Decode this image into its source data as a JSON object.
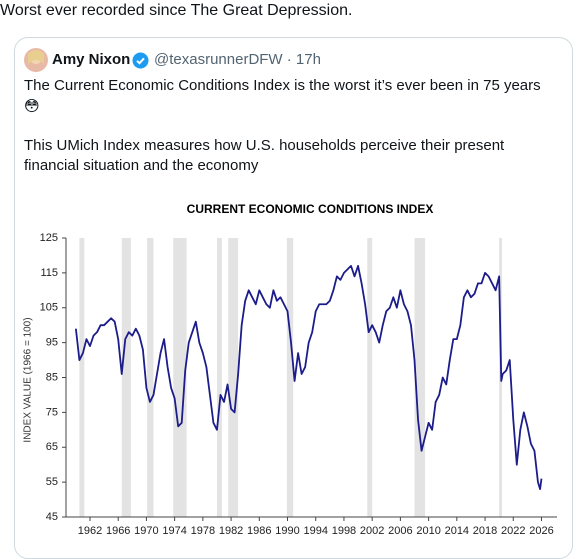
{
  "post": {
    "text": "Worst ever recorded since The Great Depression."
  },
  "quoted": {
    "name": "Amy Nixon",
    "handle": "@texasrunnerDFW · 17h",
    "lines": [
      "The Current Economic Conditions Index is the worst it’s ever been in 75 years",
      "😳",
      "This UMich Index measures how U.S. households perceive their present",
      "financial situation and the economy"
    ]
  },
  "chart_data": {
    "type": "line",
    "title": "CURRENT ECONOMIC CONDITIONS INDEX",
    "y_label": "INDEX VALUE (1966 = 100)",
    "xlim": [
      1958.6,
      2028.2
    ],
    "xticks": [
      1962,
      1966,
      1970,
      1974,
      1978,
      1982,
      1986,
      1990,
      1994,
      1998,
      2002,
      2006,
      2010,
      2014,
      2018,
      2022,
      2026
    ],
    "ylim": [
      45,
      125
    ],
    "yticks": [
      45,
      55,
      65,
      75,
      85,
      95,
      105,
      115,
      125
    ],
    "shaded_periods": [
      [
        1960.5,
        1961.2
      ],
      [
        1966.5,
        1967.8
      ],
      [
        1970.1,
        1971.0
      ],
      [
        1973.8,
        1975.7
      ],
      [
        1980.0,
        1980.7
      ],
      [
        1981.6,
        1983.0
      ],
      [
        1989.9,
        1990.8
      ],
      [
        2001.3,
        2002.0
      ],
      [
        2008.0,
        2009.5
      ],
      [
        2020.0,
        2020.4
      ]
    ],
    "shade_color": "#e3e3e3",
    "x": [
      1960.0,
      1960.5,
      1961.0,
      1961.5,
      1962.0,
      1962.5,
      1963.0,
      1963.5,
      1964.0,
      1964.5,
      1965.0,
      1965.5,
      1966.0,
      1966.5,
      1967.0,
      1967.5,
      1968.0,
      1968.5,
      1969.0,
      1969.5,
      1970.0,
      1970.5,
      1971.0,
      1971.5,
      1972.0,
      1972.5,
      1973.0,
      1973.5,
      1974.0,
      1974.5,
      1975.0,
      1975.5,
      1976.0,
      1976.5,
      1977.0,
      1977.5,
      1978.0,
      1978.5,
      1979.0,
      1979.5,
      1980.0,
      1980.5,
      1981.0,
      1981.5,
      1982.0,
      1982.5,
      1983.0,
      1983.5,
      1984.0,
      1984.5,
      1985.0,
      1985.5,
      1986.0,
      1986.5,
      1987.0,
      1987.5,
      1988.0,
      1988.5,
      1989.0,
      1989.5,
      1990.0,
      1990.5,
      1991.0,
      1991.5,
      1992.0,
      1992.5,
      1993.0,
      1993.5,
      1994.0,
      1994.5,
      1995.0,
      1995.5,
      1996.0,
      1996.5,
      1997.0,
      1997.5,
      1998.0,
      1998.5,
      1999.0,
      1999.5,
      2000.0,
      2000.5,
      2001.0,
      2001.5,
      2002.0,
      2002.5,
      2003.0,
      2003.5,
      2004.0,
      2004.5,
      2005.0,
      2005.5,
      2006.0,
      2006.5,
      2007.0,
      2007.5,
      2008.0,
      2008.5,
      2009.0,
      2009.5,
      2010.0,
      2010.5,
      2011.0,
      2011.5,
      2012.0,
      2012.5,
      2013.0,
      2013.5,
      2014.0,
      2014.5,
      2015.0,
      2015.5,
      2016.0,
      2016.5,
      2017.0,
      2017.5,
      2018.0,
      2018.5,
      2019.0,
      2019.5,
      2020.0,
      2020.3,
      2020.5,
      2021.0,
      2021.5,
      2022.0,
      2022.5,
      2023.0,
      2023.5,
      2024.0,
      2024.5,
      2025.0,
      2025.5,
      2025.8,
      2026.0
    ],
    "series": [
      {
        "name": "Current Economic Conditions Index",
        "color": "#1c1c8a",
        "values": [
          99,
          90,
          92,
          96,
          94,
          97,
          98,
          100,
          100,
          101,
          102,
          101,
          96,
          86,
          96,
          98,
          97,
          99,
          97,
          93,
          82,
          78,
          80,
          86,
          92,
          96,
          88,
          82,
          79,
          71,
          72,
          87,
          95,
          98,
          101,
          95,
          92,
          88,
          80,
          72,
          70,
          80,
          78,
          83,
          76,
          75,
          86,
          100,
          107,
          110,
          108,
          106,
          110,
          108,
          106,
          105,
          110,
          107,
          108,
          106,
          104,
          95,
          84,
          92,
          86,
          88,
          95,
          98,
          104,
          106,
          106,
          106,
          107,
          110,
          114,
          113,
          115,
          116,
          117,
          114,
          117,
          112,
          106,
          98,
          100,
          98,
          95,
          100,
          104,
          105,
          108,
          105,
          110,
          106,
          104,
          100,
          90,
          73,
          64,
          68,
          72,
          70,
          78,
          80,
          85,
          83,
          90,
          96,
          96,
          100,
          108,
          110,
          108,
          109,
          112,
          112,
          115,
          114,
          112,
          110,
          114,
          84,
          86,
          87,
          90,
          73,
          60,
          70,
          75,
          71,
          66,
          64,
          55,
          53,
          56
        ]
      }
    ]
  }
}
